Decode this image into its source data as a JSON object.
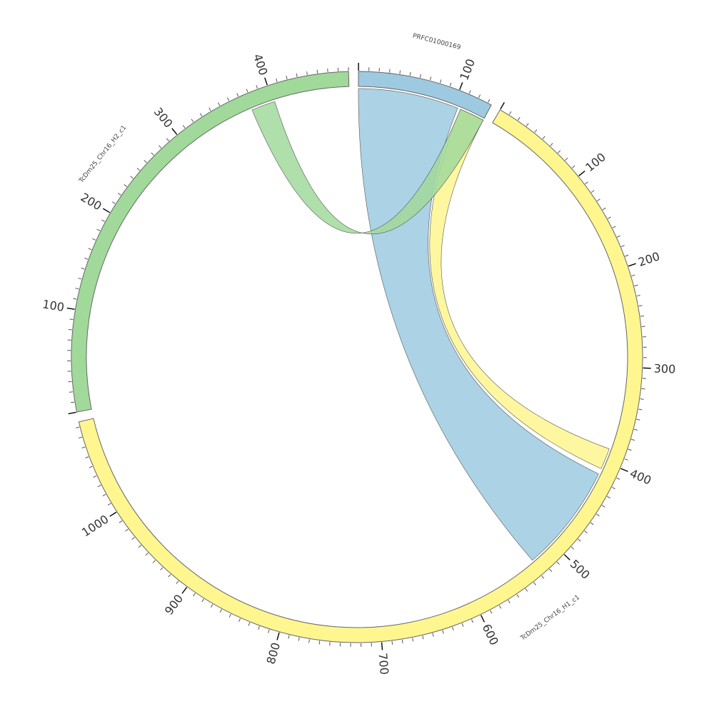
{
  "chart_data": {
    "type": "chord",
    "title": "",
    "tick_major": 100,
    "tick_minor": 10,
    "sectors": [
      {
        "name": "PRFC01000169",
        "length": 134,
        "color": "#9ecae1"
      },
      {
        "name": "TcDm25_Chr16_H1_c1",
        "length": 1095,
        "color": "#fff68f"
      },
      {
        "name": "TcDm25_Chr16_H2_c1",
        "length": 480,
        "color": "#a1d99b"
      }
    ],
    "links": [
      {
        "from": "PRFC01000169",
        "from_range": [
          0,
          105
        ],
        "to": "TcDm25_Chr16_H1_c1",
        "to_range": [
          527,
          414
        ],
        "color": "#9ecae1"
      },
      {
        "from": "TcDm25_Chr16_H1_c1",
        "from_range": [
          386,
          408
        ],
        "to": "PRFC01000169",
        "to_range": [
          134,
          108
        ],
        "color": "#fff68f"
      },
      {
        "from": "TcDm25_Chr16_H2_c1",
        "from_range": [
          377,
          402
        ],
        "to": "PRFC01000169",
        "to_range": [
          108,
          134
        ],
        "color": "#a1d99b"
      }
    ]
  }
}
